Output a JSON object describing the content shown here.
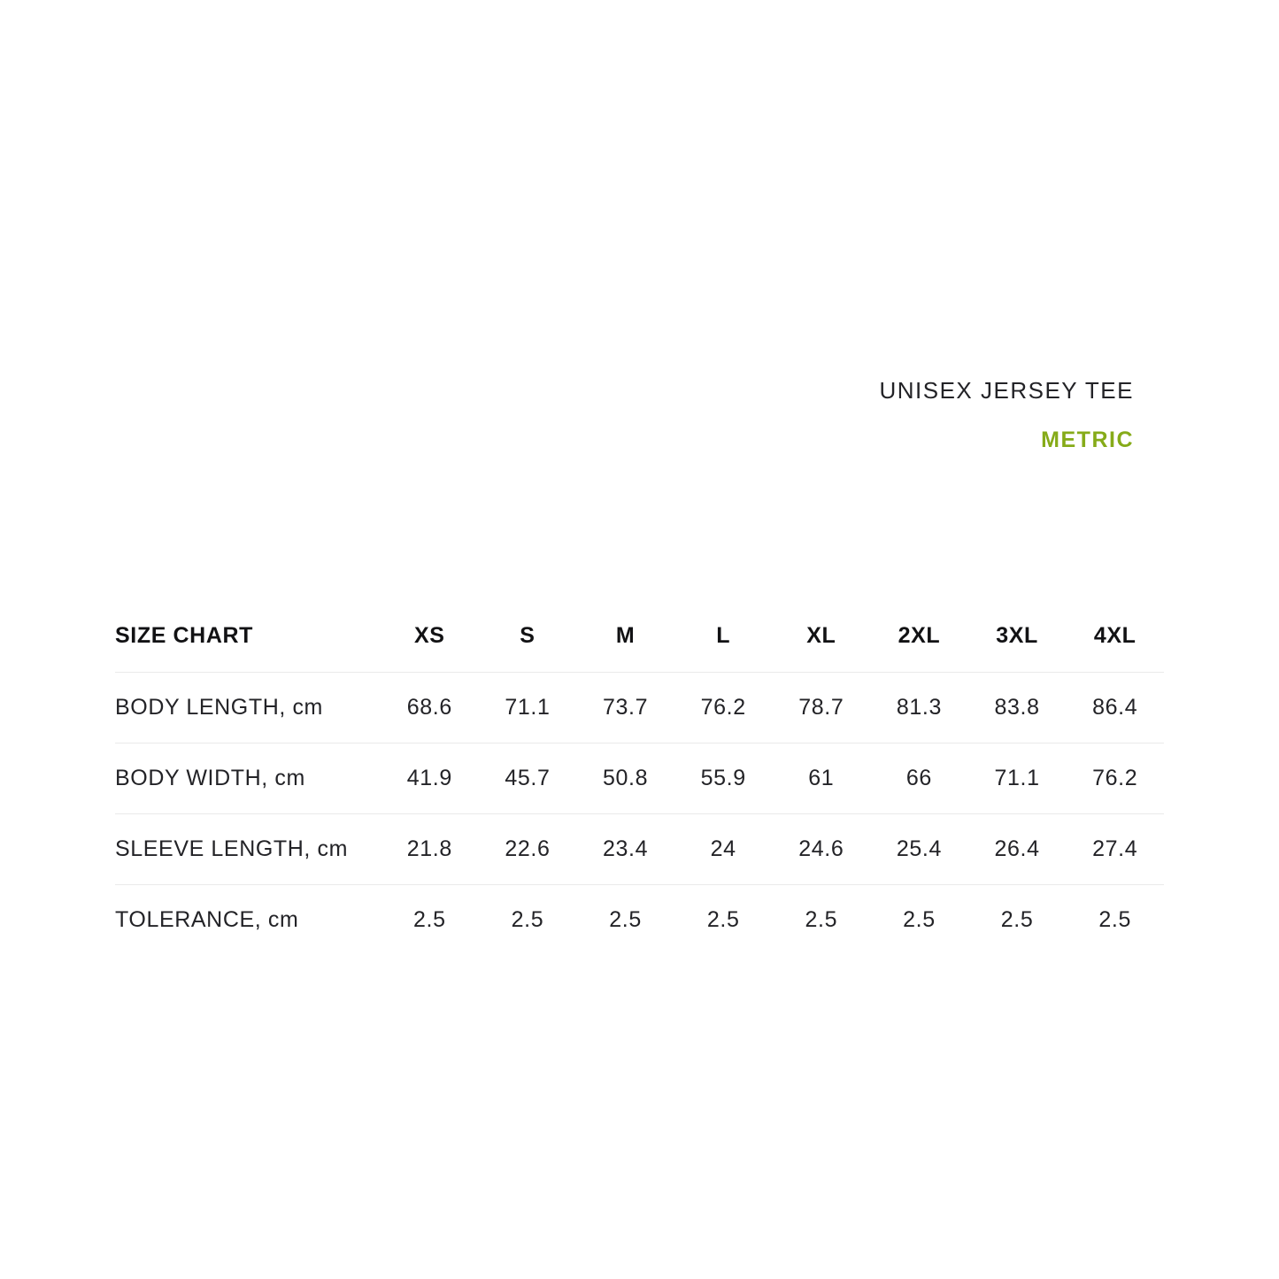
{
  "header": {
    "product_title": "UNISEX JERSEY TEE",
    "unit_label": "METRIC"
  },
  "colors": {
    "accent_green": "#86AB19",
    "text_dark": "#232327",
    "divider": "#eaeaea"
  },
  "chart_data": {
    "type": "table",
    "title": "SIZE CHART",
    "columns": [
      "XS",
      "S",
      "M",
      "L",
      "XL",
      "2XL",
      "3XL",
      "4XL"
    ],
    "rows": [
      {
        "label": "BODY LENGTH, cm",
        "values": [
          "68.6",
          "71.1",
          "73.7",
          "76.2",
          "78.7",
          "81.3",
          "83.8",
          "86.4"
        ]
      },
      {
        "label": "BODY WIDTH, cm",
        "values": [
          "41.9",
          "45.7",
          "50.8",
          "55.9",
          "61",
          "66",
          "71.1",
          "76.2"
        ]
      },
      {
        "label": "SLEEVE LENGTH, cm",
        "values": [
          "21.8",
          "22.6",
          "23.4",
          "24",
          "24.6",
          "25.4",
          "26.4",
          "27.4"
        ]
      },
      {
        "label": "TOLERANCE, cm",
        "values": [
          "2.5",
          "2.5",
          "2.5",
          "2.5",
          "2.5",
          "2.5",
          "2.5",
          "2.5"
        ]
      }
    ]
  }
}
